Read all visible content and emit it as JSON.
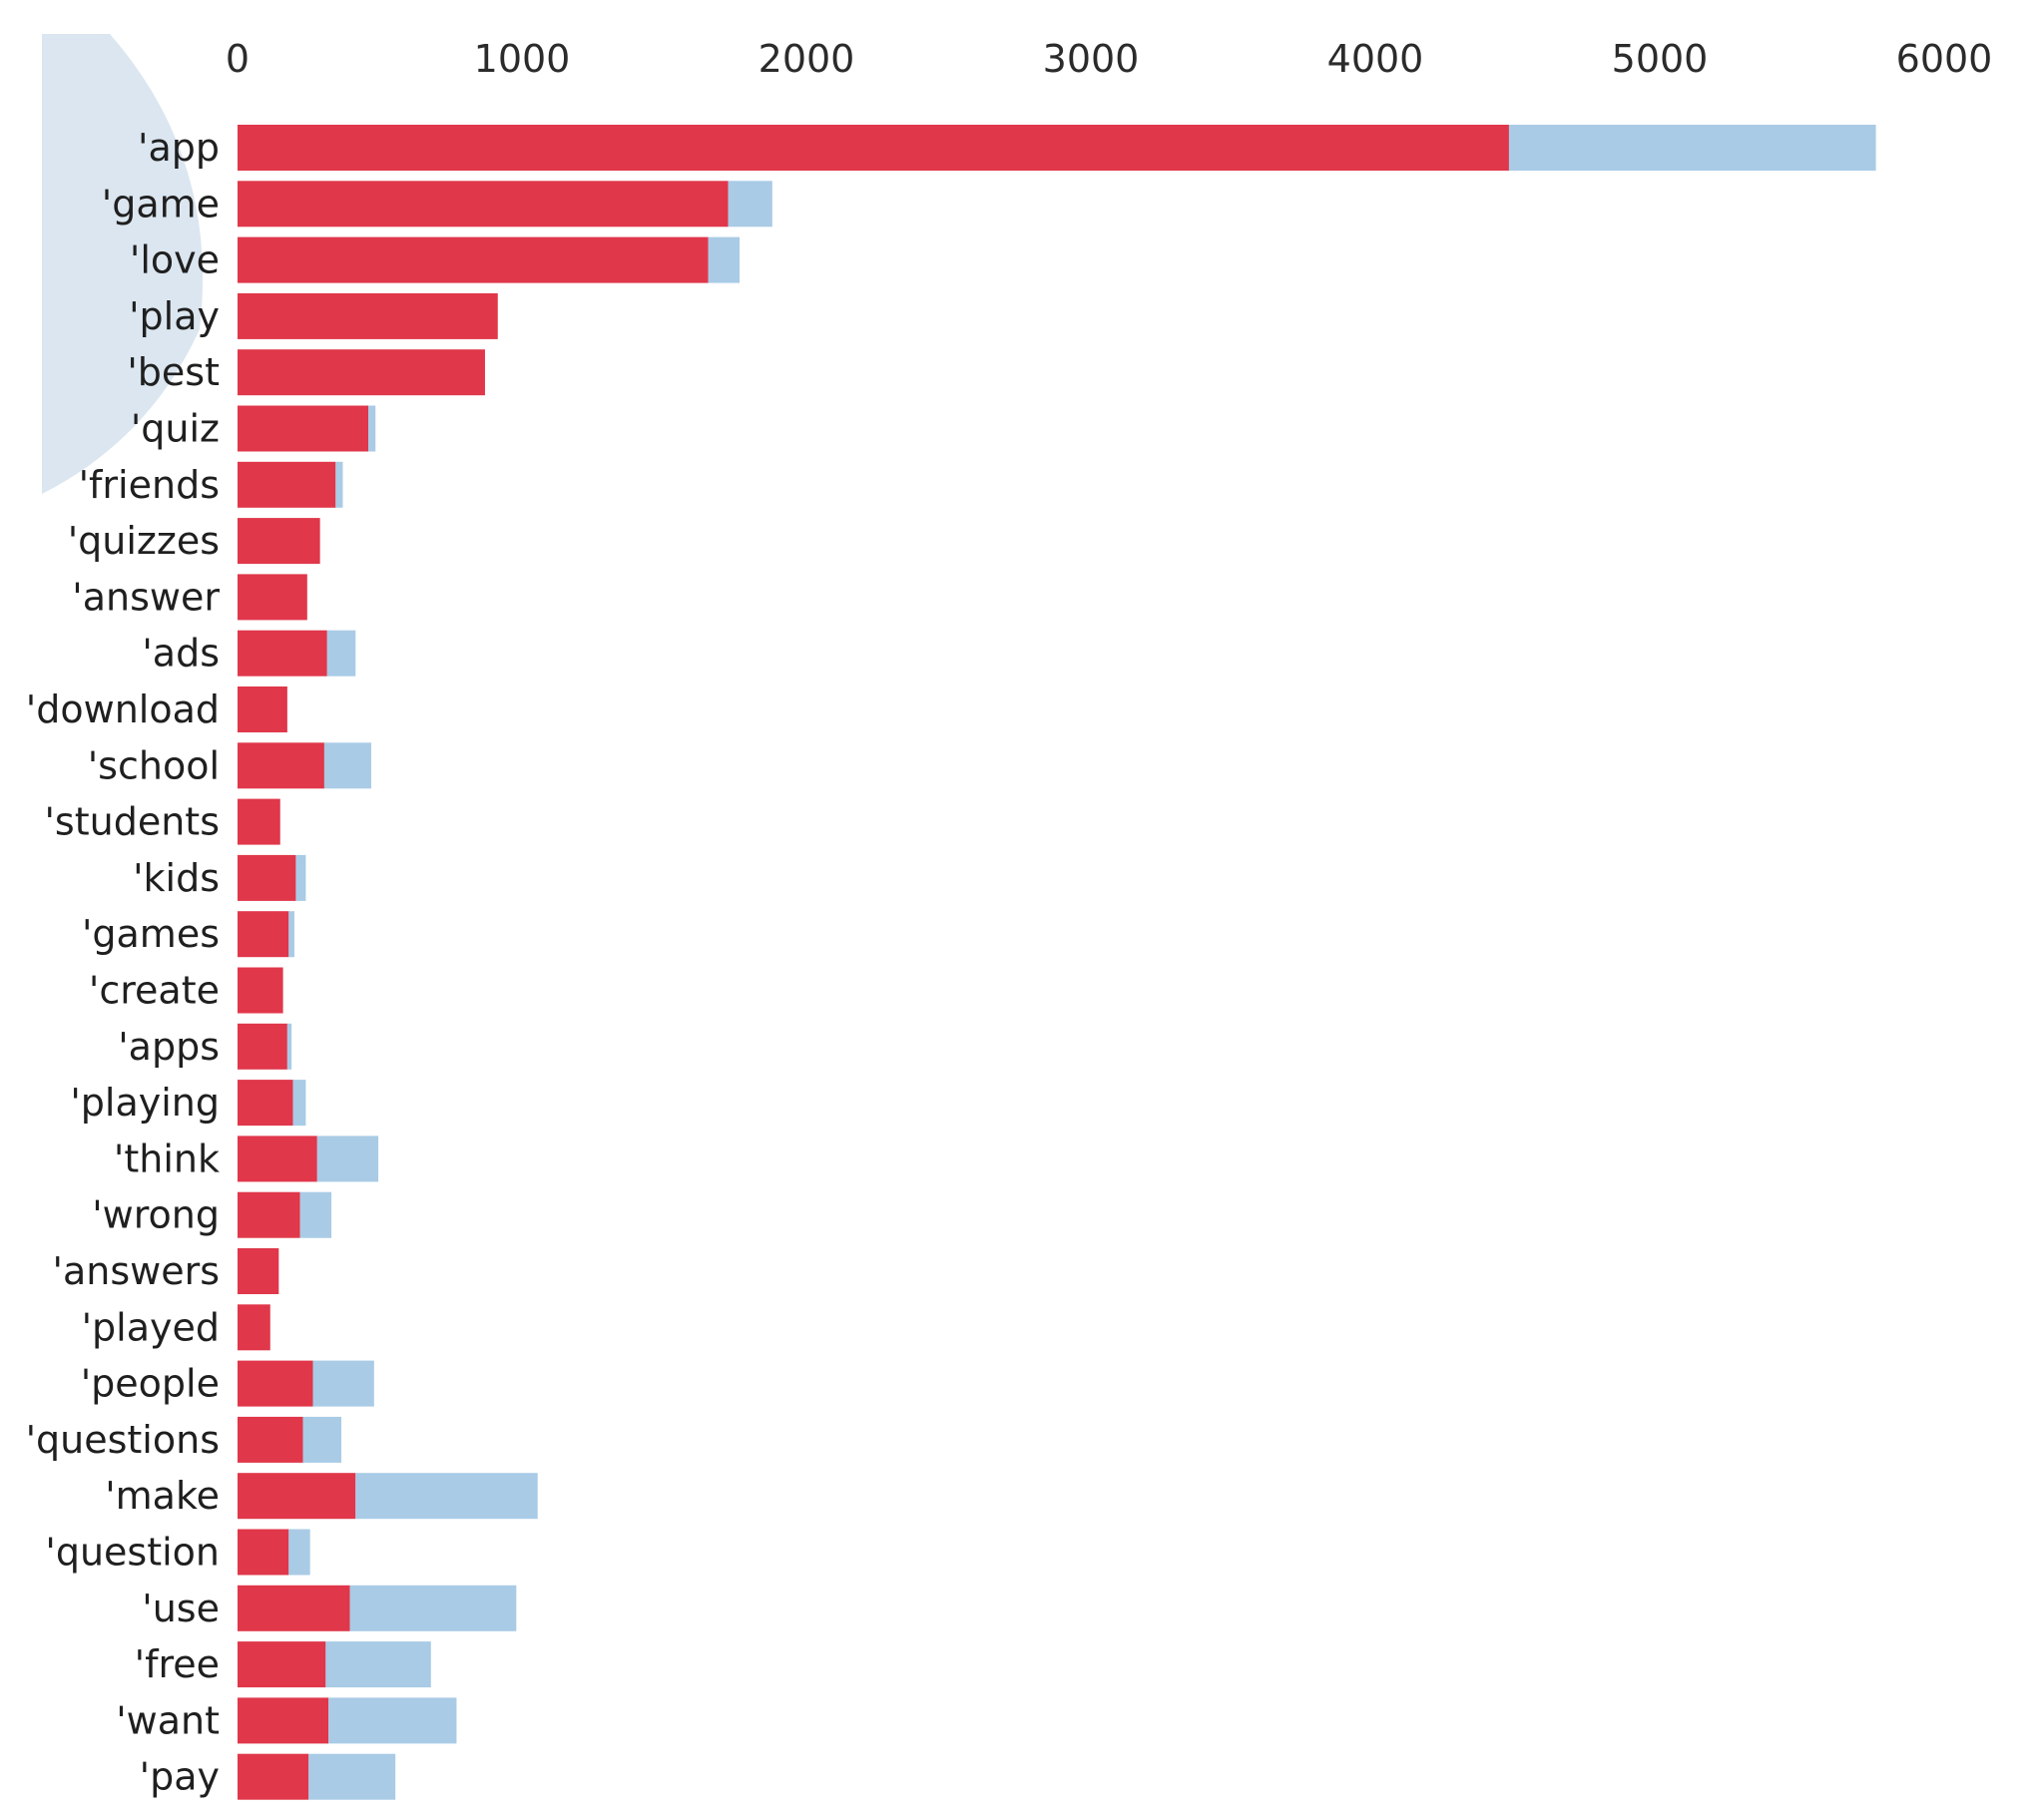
{
  "colors": {
    "primary_bar": "#e0374a",
    "secondary_bar": "#a9cbe6",
    "background_disc": "#dbe6f0",
    "text": "#1f1f1f"
  },
  "chart_data": {
    "type": "bar",
    "orientation": "horizontal",
    "stacked": true,
    "title": "",
    "xlabel": "",
    "ylabel": "",
    "xlim": [
      0,
      6000
    ],
    "x_ticks": [
      0,
      1000,
      2000,
      3000,
      4000,
      5000,
      6000
    ],
    "x_tick_labels": [
      "0",
      "1000",
      "2000",
      "3000",
      "4000",
      "5000",
      "6000"
    ],
    "x_axis_position": "top",
    "grid": false,
    "legend": "none",
    "categories": [
      "'app",
      "'game",
      "'love",
      "'play",
      "'best",
      "'quiz",
      "'friends",
      "'quizzes",
      "'answer",
      "'ads",
      "'download",
      "'school",
      "'students",
      "'kids",
      "'games",
      "'create",
      "'apps",
      "'playing",
      "'think",
      "'wrong",
      "'answers",
      "'played",
      "'people",
      "'questions",
      "'make",
      "'question",
      "'use",
      "'free",
      "'want",
      "'pay"
    ],
    "series": [
      {
        "values": [
          4470,
          1725,
          1655,
          915,
          870,
          460,
          345,
          290,
          245,
          315,
          175,
          305,
          150,
          205,
          180,
          160,
          175,
          195,
          280,
          220,
          145,
          115,
          265,
          230,
          415,
          180,
          395,
          310,
          320,
          250
        ]
      },
      {
        "values": [
          1290,
          155,
          110,
          0,
          0,
          25,
          25,
          0,
          0,
          100,
          0,
          165,
          0,
          35,
          20,
          0,
          15,
          45,
          215,
          110,
          0,
          0,
          215,
          135,
          640,
          75,
          585,
          370,
          450,
          305
        ]
      }
    ]
  }
}
